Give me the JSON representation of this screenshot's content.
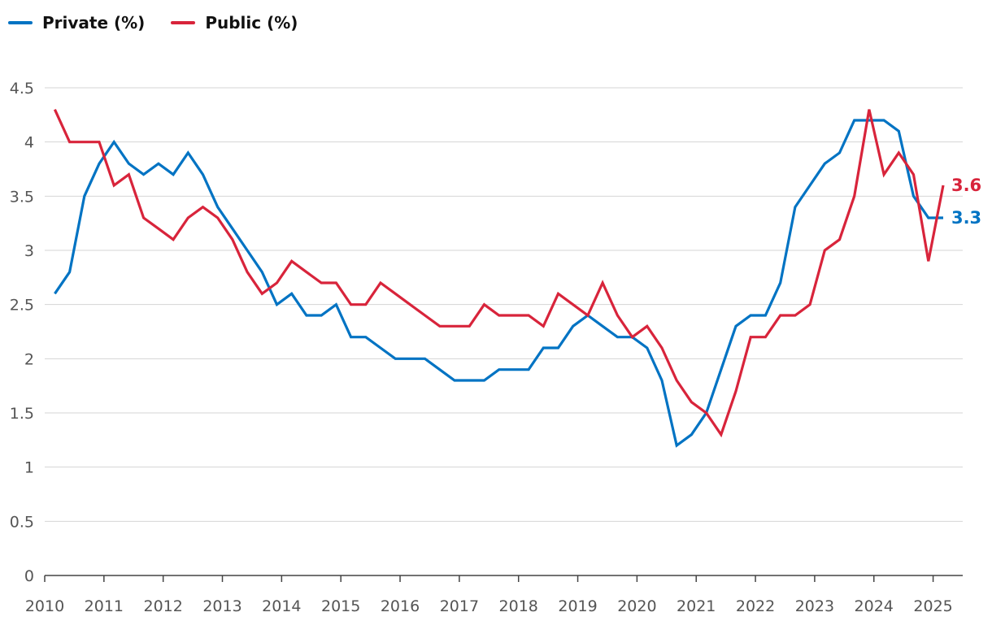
{
  "chart_data": {
    "type": "line",
    "title": "",
    "xlabel": "",
    "ylabel": "",
    "ylim": [
      0,
      4.5
    ],
    "yticks": [
      "0",
      "0.5",
      "1",
      "1.5",
      "2",
      "2.5",
      "3",
      "3.5",
      "4",
      "4.5"
    ],
    "xlim": [
      2010,
      2025.5
    ],
    "xticks": [
      "2010",
      "2011",
      "2012",
      "2013",
      "2014",
      "2015",
      "2016",
      "2017",
      "2018",
      "2019",
      "2020",
      "2021",
      "2022",
      "2023",
      "2024",
      "2025"
    ],
    "grid": "horizontal",
    "legend": "top-left",
    "x": [
      2010.17,
      2010.42,
      2010.67,
      2010.92,
      2011.17,
      2011.42,
      2011.67,
      2011.92,
      2012.17,
      2012.42,
      2012.67,
      2012.92,
      2013.17,
      2013.42,
      2013.67,
      2013.92,
      2014.17,
      2014.42,
      2014.67,
      2014.92,
      2015.17,
      2015.42,
      2015.67,
      2015.92,
      2016.17,
      2016.42,
      2016.67,
      2016.92,
      2017.17,
      2017.42,
      2017.67,
      2017.92,
      2018.17,
      2018.42,
      2018.67,
      2018.92,
      2019.17,
      2019.42,
      2019.67,
      2019.92,
      2020.17,
      2020.42,
      2020.67,
      2020.92,
      2021.17,
      2021.42,
      2021.67,
      2021.92,
      2022.17,
      2022.42,
      2022.67,
      2022.92,
      2023.17,
      2023.42,
      2023.67,
      2023.92,
      2024.17,
      2024.42,
      2024.67,
      2024.92,
      2025.17
    ],
    "series": [
      {
        "name": "Private (%)",
        "color": "#0073c3",
        "end_label": "3.3",
        "values": [
          2.6,
          2.8,
          3.5,
          3.8,
          4.0,
          3.8,
          3.7,
          3.8,
          3.7,
          3.9,
          3.7,
          3.4,
          3.2,
          3.0,
          2.8,
          2.5,
          2.6,
          2.4,
          2.4,
          2.5,
          2.2,
          2.2,
          2.1,
          2.0,
          2.0,
          2.0,
          1.9,
          1.8,
          1.8,
          1.8,
          1.9,
          1.9,
          1.9,
          2.1,
          2.1,
          2.3,
          2.4,
          2.3,
          2.2,
          2.2,
          2.1,
          1.8,
          1.2,
          1.3,
          1.5,
          1.9,
          2.3,
          2.4,
          2.4,
          2.7,
          3.4,
          3.6,
          3.8,
          3.9,
          4.2,
          4.2,
          4.2,
          4.1,
          3.5,
          3.3,
          3.3
        ]
      },
      {
        "name": "Public (%)",
        "color": "#d8243b",
        "end_label": "3.6",
        "values": [
          4.3,
          4.0,
          4.0,
          4.0,
          3.6,
          3.7,
          3.3,
          3.2,
          3.1,
          3.3,
          3.4,
          3.3,
          3.1,
          2.8,
          2.6,
          2.7,
          2.9,
          2.8,
          2.7,
          2.7,
          2.5,
          2.5,
          2.7,
          2.6,
          2.5,
          2.4,
          2.3,
          2.3,
          2.3,
          2.5,
          2.4,
          2.4,
          2.4,
          2.3,
          2.6,
          2.5,
          2.4,
          2.7,
          2.4,
          2.2,
          2.3,
          2.1,
          1.8,
          1.6,
          1.5,
          1.3,
          1.7,
          2.2,
          2.2,
          2.4,
          2.4,
          2.5,
          3.0,
          3.1,
          3.5,
          4.3,
          3.7,
          3.9,
          3.7,
          2.9,
          3.6
        ]
      }
    ]
  }
}
